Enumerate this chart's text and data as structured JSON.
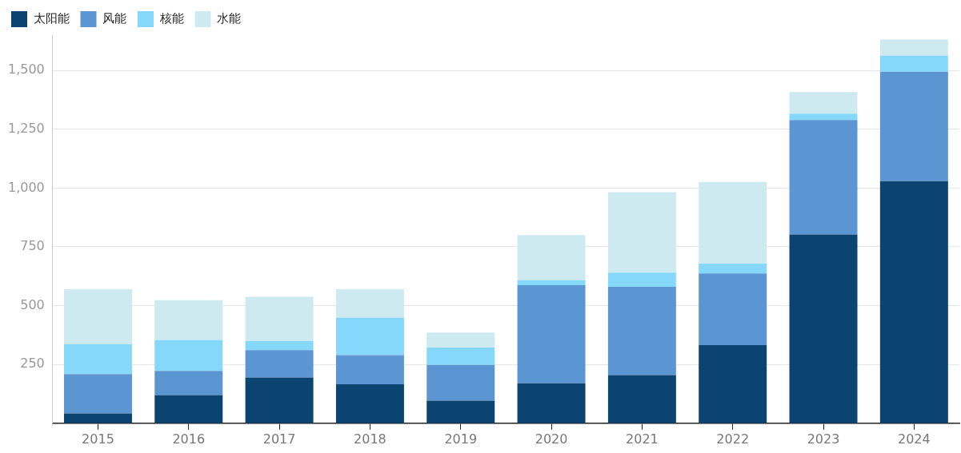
{
  "chart_data": {
    "type": "bar",
    "stacked": true,
    "legend": "top left",
    "grid": "y",
    "categories": [
      "2015",
      "2016",
      "2017",
      "2018",
      "2019",
      "2020",
      "2021",
      "2022",
      "2023",
      "2024"
    ],
    "ylim": [
      0,
      1650
    ],
    "yticks": [
      250,
      500,
      750,
      {
        "value": 1000,
        "label": "1,000"
      },
      {
        "value": 1250,
        "label": "1,250"
      },
      {
        "value": 1500,
        "label": "1,500"
      }
    ],
    "series": [
      {
        "name": "太阳能",
        "color": "#0b4470",
        "values": [
          42,
          120,
          195,
          166,
          96,
          170,
          205,
          332,
          803,
          1029
        ]
      },
      {
        "name": "风能",
        "color": "#5b96d2",
        "values": [
          167,
          103,
          116,
          124,
          152,
          417,
          375,
          305,
          486,
          466
        ]
      },
      {
        "name": "核能",
        "color": "#86d8fa",
        "values": [
          127,
          131,
          39,
          159,
          74,
          21,
          60,
          42,
          27,
          68
        ]
      },
      {
        "name": "水能",
        "color": "#cdeaf1",
        "values": [
          234,
          169,
          188,
          121,
          64,
          192,
          343,
          347,
          92,
          68
        ]
      }
    ]
  }
}
